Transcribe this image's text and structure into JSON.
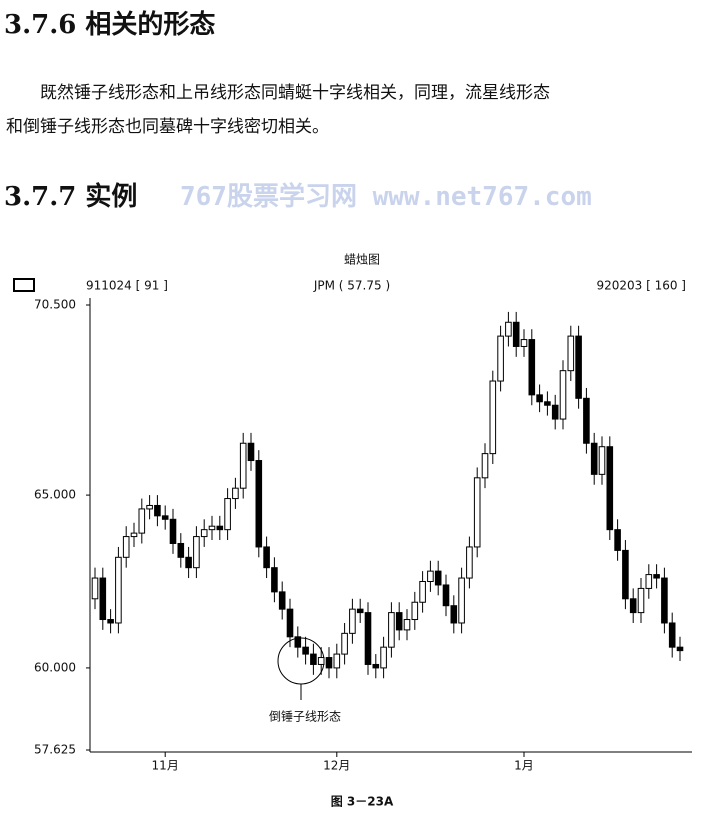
{
  "section_1": {
    "heading": "3.7.6 相关的形态",
    "paragraph_lines": [
      "既然锤子线形态和上吊线形态同蜻蜓十字线相关，同理，流星线形态",
      "和倒锤子线形态也同墓碑十字线密切相关。"
    ]
  },
  "section_2": {
    "heading": "3.7.7 实例",
    "watermark": "767股票学习网 www.net767.com"
  },
  "chart_data": {
    "type": "candlestick",
    "title": "蜡烛图",
    "header_left": "911024 [ 91 ]",
    "header_center": "JPM ( 57.75 )",
    "header_right": "920203 [ 160 ]",
    "annotation": "倒锤子线形态",
    "caption": "图 3－23A",
    "up_color": "#ffffff",
    "down_color": "#000000",
    "ylim": [
      57.625,
      70.5
    ],
    "yticks": [
      {
        "value": 57.625,
        "label": "57.625"
      },
      {
        "value": 60,
        "label": "60.000"
      },
      {
        "value": 65,
        "label": "65.000"
      },
      {
        "value": 70.5,
        "label": "70.500"
      }
    ],
    "categories": [
      null,
      null,
      null,
      null,
      null,
      null,
      null,
      null,
      null,
      "11月",
      null,
      null,
      null,
      null,
      null,
      null,
      null,
      null,
      null,
      null,
      null,
      null,
      null,
      null,
      null,
      null,
      null,
      null,
      null,
      null,
      null,
      "12月",
      null,
      null,
      null,
      null,
      null,
      null,
      null,
      null,
      null,
      null,
      null,
      null,
      null,
      null,
      null,
      null,
      null,
      null,
      null,
      null,
      null,
      null,
      null,
      "1月",
      null,
      null,
      null,
      null,
      null,
      null,
      null,
      null,
      null,
      null,
      null,
      null,
      null,
      null,
      null,
      null,
      null,
      null,
      null,
      null
    ],
    "open": [
      62.0,
      62.6,
      61.4,
      61.3,
      63.2,
      63.8,
      63.9,
      64.6,
      64.7,
      64.4,
      64.3,
      63.6,
      63.2,
      62.9,
      63.8,
      64.0,
      64.1,
      64.0,
      64.9,
      65.2,
      66.5,
      66.0,
      63.5,
      62.9,
      62.2,
      61.7,
      60.9,
      60.6,
      60.4,
      60.1,
      60.3,
      60.0,
      60.4,
      61.0,
      61.7,
      61.6,
      60.1,
      60.0,
      60.6,
      61.6,
      61.1,
      61.4,
      61.9,
      62.5,
      62.8,
      62.4,
      61.8,
      61.3,
      62.6,
      63.5,
      65.5,
      66.2,
      68.3,
      69.6,
      70.0,
      69.3,
      69.5,
      67.9,
      67.7,
      67.6,
      67.2,
      68.6,
      69.6,
      67.8,
      66.5,
      65.6,
      66.4,
      64.0,
      63.4,
      62.0,
      61.6,
      62.3,
      62.7,
      62.6,
      61.3,
      60.6
    ],
    "high": [
      62.9,
      62.9,
      61.7,
      63.5,
      64.1,
      64.2,
      64.9,
      65.0,
      65.0,
      64.7,
      64.6,
      63.9,
      63.5,
      64.1,
      64.3,
      64.4,
      64.4,
      65.2,
      65.5,
      66.8,
      66.8,
      66.3,
      63.8,
      63.2,
      62.5,
      62.0,
      61.2,
      60.9,
      60.7,
      60.6,
      60.6,
      60.7,
      61.3,
      62.0,
      62.0,
      61.9,
      60.4,
      60.9,
      61.9,
      61.9,
      61.7,
      62.2,
      62.8,
      63.1,
      63.1,
      62.7,
      62.1,
      62.9,
      63.8,
      65.8,
      66.5,
      68.6,
      69.9,
      70.3,
      70.3,
      69.8,
      69.8,
      68.2,
      68.0,
      67.9,
      68.9,
      69.9,
      69.9,
      68.1,
      66.8,
      66.7,
      66.7,
      64.3,
      63.7,
      62.3,
      62.6,
      63.0,
      63.0,
      62.9,
      61.6,
      60.9
    ],
    "low": [
      61.7,
      61.1,
      61.0,
      61.0,
      62.9,
      63.5,
      63.6,
      64.3,
      64.1,
      64.0,
      63.3,
      62.9,
      62.6,
      62.6,
      63.5,
      63.7,
      63.7,
      63.7,
      64.6,
      64.9,
      65.7,
      63.2,
      62.6,
      61.9,
      61.4,
      60.6,
      60.3,
      60.1,
      59.8,
      59.8,
      59.7,
      59.7,
      60.1,
      60.7,
      61.3,
      59.8,
      59.7,
      59.7,
      60.3,
      60.8,
      60.8,
      61.1,
      61.6,
      62.2,
      62.1,
      61.5,
      61.0,
      61.0,
      62.3,
      63.2,
      65.2,
      65.9,
      68.0,
      69.3,
      69.0,
      69.0,
      67.6,
      67.4,
      67.3,
      66.9,
      66.9,
      68.3,
      67.5,
      66.2,
      65.3,
      65.3,
      63.7,
      63.1,
      61.7,
      61.3,
      61.3,
      62.0,
      62.3,
      61.0,
      60.3,
      60.2
    ],
    "close": [
      62.6,
      61.4,
      61.3,
      63.2,
      63.8,
      63.9,
      64.6,
      64.7,
      64.4,
      64.3,
      63.6,
      63.2,
      62.9,
      63.8,
      64.0,
      64.1,
      64.0,
      64.9,
      65.2,
      66.5,
      66.0,
      63.5,
      62.9,
      62.2,
      61.7,
      60.9,
      60.6,
      60.4,
      60.1,
      60.3,
      60.0,
      60.4,
      61.0,
      61.7,
      61.6,
      60.1,
      60.0,
      60.6,
      61.6,
      61.1,
      61.4,
      61.9,
      62.5,
      62.8,
      62.4,
      61.8,
      61.3,
      62.6,
      63.5,
      65.5,
      66.2,
      68.3,
      69.6,
      70.0,
      69.3,
      69.5,
      67.9,
      67.7,
      67.6,
      67.2,
      68.6,
      69.6,
      67.8,
      66.5,
      65.6,
      66.4,
      64.0,
      63.4,
      62.0,
      61.6,
      62.3,
      62.7,
      62.6,
      61.3,
      60.6,
      60.5
    ]
  }
}
